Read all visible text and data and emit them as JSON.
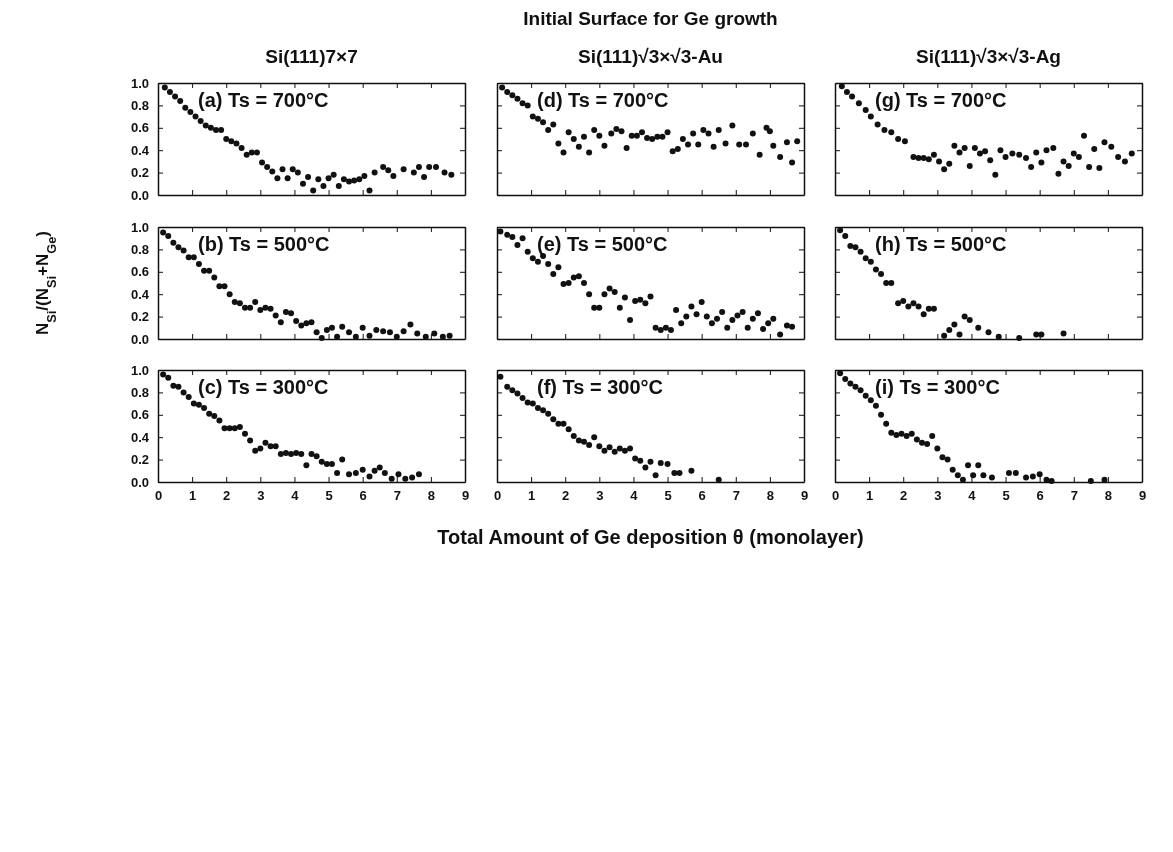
{
  "chart_data": [
    {
      "type": "scatter",
      "subtitle": "Si(111)7×7",
      "annotations": [
        "(a) Ts = 700°C"
      ],
      "marker": "circle",
      "color": "#111111",
      "xlim": [
        0,
        9
      ],
      "ylim": [
        0,
        1
      ],
      "xticks": [
        0,
        1,
        2,
        3,
        4,
        5,
        6,
        7,
        8,
        9
      ],
      "yticks": [
        {
          "value": 0,
          "label": "0.0"
        },
        {
          "value": 0.2,
          "label": "0.2"
        },
        {
          "value": 0.4,
          "label": "0.4"
        },
        {
          "value": 0.6,
          "label": "0.6"
        },
        {
          "value": 0.8,
          "label": "0.8"
        },
        {
          "value": 1,
          "label": "1.0"
        }
      ],
      "tick_labels": "y",
      "x": [
        0.2,
        0.35,
        0.5,
        0.65,
        0.8,
        0.95,
        1.1,
        1.25,
        1.4,
        1.55,
        1.7,
        1.85,
        2.0,
        2.15,
        2.3,
        2.45,
        2.6,
        2.75,
        2.9,
        3.05,
        3.2,
        3.35,
        3.5,
        3.65,
        3.8,
        3.95,
        4.1,
        4.25,
        4.4,
        4.55,
        4.7,
        4.85,
        5.0,
        5.15,
        5.3,
        5.45,
        5.6,
        5.75,
        5.9,
        6.05,
        6.2,
        6.35,
        6.6,
        6.75,
        6.9,
        7.2,
        7.5,
        7.65,
        7.8,
        7.95,
        8.15,
        8.4,
        8.6
      ],
      "values": [
        0.96,
        0.92,
        0.88,
        0.84,
        0.78,
        0.74,
        0.7,
        0.66,
        0.62,
        0.6,
        0.58,
        0.58,
        0.5,
        0.48,
        0.46,
        0.42,
        0.36,
        0.38,
        0.38,
        0.29,
        0.25,
        0.21,
        0.15,
        0.23,
        0.15,
        0.23,
        0.2,
        0.1,
        0.16,
        0.04,
        0.14,
        0.08,
        0.15,
        0.18,
        0.08,
        0.14,
        0.12,
        0.13,
        0.14,
        0.17,
        0.04,
        0.2,
        0.25,
        0.22,
        0.17,
        0.23,
        0.2,
        0.25,
        0.16,
        0.25,
        0.25,
        0.2,
        0.18
      ]
    },
    {
      "type": "scatter",
      "title": "Initial Surface for Ge growth",
      "subtitle": "Si(111)√3×√3-Au",
      "annotations": [
        "(d) Ts = 700°C"
      ],
      "marker": "circle",
      "color": "#111111",
      "xlim": [
        0,
        9
      ],
      "ylim": [
        0,
        1
      ],
      "xticks": [
        0,
        1,
        2,
        3,
        4,
        5,
        6,
        7,
        8,
        9
      ],
      "yticks": [
        0,
        0.2,
        0.4,
        0.6,
        0.8,
        1
      ],
      "tick_labels": false,
      "x": [
        0.15,
        0.3,
        0.45,
        0.6,
        0.75,
        0.9,
        1.05,
        1.2,
        1.35,
        1.5,
        1.65,
        1.8,
        1.95,
        2.1,
        2.25,
        2.4,
        2.55,
        2.7,
        2.85,
        3.0,
        3.15,
        3.35,
        3.5,
        3.65,
        3.8,
        3.95,
        4.1,
        4.25,
        4.4,
        4.55,
        4.7,
        4.85,
        5.0,
        5.15,
        5.3,
        5.45,
        5.6,
        5.75,
        5.9,
        6.05,
        6.2,
        6.35,
        6.5,
        6.7,
        6.9,
        7.1,
        7.3,
        7.5,
        7.7,
        7.9,
        8.0,
        8.1,
        8.3,
        8.5,
        8.65,
        8.8
      ],
      "values": [
        0.96,
        0.92,
        0.89,
        0.86,
        0.82,
        0.8,
        0.7,
        0.68,
        0.65,
        0.58,
        0.63,
        0.46,
        0.38,
        0.56,
        0.5,
        0.43,
        0.52,
        0.38,
        0.58,
        0.53,
        0.44,
        0.55,
        0.59,
        0.57,
        0.42,
        0.53,
        0.53,
        0.56,
        0.51,
        0.5,
        0.52,
        0.52,
        0.56,
        0.39,
        0.41,
        0.5,
        0.45,
        0.55,
        0.45,
        0.58,
        0.55,
        0.43,
        0.58,
        0.46,
        0.62,
        0.45,
        0.45,
        0.55,
        0.36,
        0.6,
        0.57,
        0.44,
        0.34,
        0.47,
        0.29,
        0.48
      ]
    },
    {
      "type": "scatter",
      "subtitle": "Si(111)√3×√3-Ag",
      "annotations": [
        "(g) Ts = 700°C"
      ],
      "marker": "circle",
      "color": "#111111",
      "xlim": [
        0,
        9
      ],
      "ylim": [
        0,
        1
      ],
      "xticks": [
        0,
        1,
        2,
        3,
        4,
        5,
        6,
        7,
        8,
        9
      ],
      "yticks": [
        0,
        0.2,
        0.4,
        0.6,
        0.8,
        1
      ],
      "tick_labels": false,
      "x": [
        0.2,
        0.35,
        0.5,
        0.7,
        0.9,
        1.05,
        1.25,
        1.45,
        1.65,
        1.85,
        2.05,
        2.3,
        2.45,
        2.6,
        2.75,
        2.9,
        3.05,
        3.2,
        3.35,
        3.5,
        3.65,
        3.8,
        3.95,
        4.1,
        4.25,
        4.4,
        4.55,
        4.7,
        4.85,
        5.0,
        5.2,
        5.4,
        5.6,
        5.75,
        5.9,
        6.05,
        6.2,
        6.4,
        6.55,
        6.7,
        6.85,
        7.0,
        7.15,
        7.3,
        7.45,
        7.6,
        7.75,
        7.9,
        8.1,
        8.3,
        8.5,
        8.7
      ],
      "values": [
        0.97,
        0.92,
        0.88,
        0.82,
        0.76,
        0.7,
        0.63,
        0.58,
        0.56,
        0.5,
        0.48,
        0.34,
        0.33,
        0.33,
        0.32,
        0.36,
        0.3,
        0.23,
        0.28,
        0.44,
        0.38,
        0.42,
        0.26,
        0.42,
        0.37,
        0.39,
        0.31,
        0.18,
        0.4,
        0.34,
        0.37,
        0.36,
        0.33,
        0.25,
        0.38,
        0.29,
        0.4,
        0.42,
        0.19,
        0.3,
        0.26,
        0.37,
        0.34,
        0.53,
        0.25,
        0.41,
        0.24,
        0.47,
        0.43,
        0.34,
        0.3,
        0.37
      ]
    },
    {
      "type": "scatter",
      "ylabel": "N$_{Si}$/(N$_{Si}$+N$_{Ge}$)",
      "annotations": [
        "(b) Ts = 500°C"
      ],
      "marker": "circle",
      "color": "#111111",
      "xlim": [
        0,
        9
      ],
      "ylim": [
        0,
        1
      ],
      "xticks": [
        0,
        1,
        2,
        3,
        4,
        5,
        6,
        7,
        8,
        9
      ],
      "yticks": [
        {
          "value": 0,
          "label": "0.0"
        },
        {
          "value": 0.2,
          "label": "0.2"
        },
        {
          "value": 0.4,
          "label": "0.4"
        },
        {
          "value": 0.6,
          "label": "0.6"
        },
        {
          "value": 0.8,
          "label": "0.8"
        },
        {
          "value": 1,
          "label": "1.0"
        }
      ],
      "tick_labels": "y",
      "x": [
        0.15,
        0.3,
        0.45,
        0.6,
        0.75,
        0.9,
        1.05,
        1.2,
        1.35,
        1.5,
        1.65,
        1.8,
        1.95,
        2.1,
        2.25,
        2.4,
        2.55,
        2.7,
        2.85,
        3.0,
        3.15,
        3.3,
        3.45,
        3.6,
        3.75,
        3.9,
        4.05,
        4.2,
        4.35,
        4.5,
        4.65,
        4.8,
        4.95,
        5.1,
        5.25,
        5.4,
        5.6,
        5.8,
        6.0,
        6.2,
        6.4,
        6.6,
        6.8,
        7.0,
        7.2,
        7.4,
        7.6,
        7.85,
        8.1,
        8.35,
        8.55
      ],
      "values": [
        0.95,
        0.92,
        0.86,
        0.82,
        0.79,
        0.73,
        0.73,
        0.67,
        0.61,
        0.61,
        0.55,
        0.47,
        0.47,
        0.4,
        0.33,
        0.32,
        0.28,
        0.28,
        0.33,
        0.26,
        0.28,
        0.27,
        0.21,
        0.15,
        0.24,
        0.23,
        0.16,
        0.12,
        0.14,
        0.15,
        0.06,
        0.01,
        0.08,
        0.1,
        0.02,
        0.11,
        0.06,
        0.02,
        0.1,
        0.03,
        0.08,
        0.07,
        0.06,
        0.02,
        0.07,
        0.13,
        0.05,
        0.02,
        0.05,
        0.02,
        0.03
      ]
    },
    {
      "type": "scatter",
      "annotations": [
        "(e) Ts = 500°C"
      ],
      "marker": "circle",
      "color": "#111111",
      "xlim": [
        0,
        9
      ],
      "ylim": [
        0,
        1
      ],
      "xticks": [
        0,
        1,
        2,
        3,
        4,
        5,
        6,
        7,
        8,
        9
      ],
      "yticks": [
        0,
        0.2,
        0.4,
        0.6,
        0.8,
        1
      ],
      "tick_labels": false,
      "x": [
        0.1,
        0.3,
        0.45,
        0.6,
        0.75,
        0.9,
        1.05,
        1.2,
        1.35,
        1.5,
        1.65,
        1.8,
        1.95,
        2.1,
        2.25,
        2.4,
        2.55,
        2.7,
        2.85,
        3.0,
        3.15,
        3.3,
        3.45,
        3.6,
        3.75,
        3.9,
        4.05,
        4.2,
        4.35,
        4.5,
        4.65,
        4.8,
        4.95,
        5.1,
        5.25,
        5.4,
        5.55,
        5.7,
        5.85,
        6.0,
        6.15,
        6.3,
        6.45,
        6.6,
        6.75,
        6.9,
        7.05,
        7.2,
        7.35,
        7.5,
        7.65,
        7.8,
        7.95,
        8.1,
        8.3,
        8.5,
        8.65
      ],
      "values": [
        0.96,
        0.93,
        0.91,
        0.84,
        0.9,
        0.78,
        0.72,
        0.69,
        0.74,
        0.67,
        0.58,
        0.64,
        0.49,
        0.5,
        0.55,
        0.56,
        0.5,
        0.4,
        0.28,
        0.28,
        0.4,
        0.45,
        0.42,
        0.28,
        0.37,
        0.17,
        0.34,
        0.35,
        0.32,
        0.38,
        0.1,
        0.08,
        0.1,
        0.08,
        0.26,
        0.14,
        0.2,
        0.29,
        0.22,
        0.33,
        0.2,
        0.14,
        0.18,
        0.24,
        0.1,
        0.17,
        0.21,
        0.24,
        0.1,
        0.18,
        0.23,
        0.09,
        0.14,
        0.18,
        0.04,
        0.12,
        0.11
      ]
    },
    {
      "type": "scatter",
      "annotations": [
        "(h) Ts = 500°C"
      ],
      "marker": "circle",
      "color": "#111111",
      "xlim": [
        0,
        9
      ],
      "ylim": [
        0,
        1
      ],
      "xticks": [
        0,
        1,
        2,
        3,
        4,
        5,
        6,
        7,
        8,
        9
      ],
      "yticks": [
        0,
        0.2,
        0.4,
        0.6,
        0.8,
        1
      ],
      "tick_labels": false,
      "x": [
        0.15,
        0.3,
        0.45,
        0.6,
        0.75,
        0.9,
        1.05,
        1.2,
        1.35,
        1.5,
        1.65,
        1.85,
        2.0,
        2.15,
        2.3,
        2.45,
        2.6,
        2.75,
        2.9,
        3.2,
        3.35,
        3.5,
        3.65,
        3.8,
        3.95,
        4.2,
        4.5,
        4.8,
        5.4,
        5.9,
        6.05,
        6.7
      ],
      "values": [
        0.97,
        0.92,
        0.83,
        0.82,
        0.78,
        0.72,
        0.69,
        0.62,
        0.58,
        0.5,
        0.5,
        0.32,
        0.34,
        0.29,
        0.32,
        0.29,
        0.22,
        0.27,
        0.27,
        0.03,
        0.08,
        0.13,
        0.04,
        0.2,
        0.17,
        0.1,
        0.06,
        0.02,
        0.01,
        0.04,
        0.04,
        0.05
      ]
    },
    {
      "type": "scatter",
      "annotations": [
        "(c) Ts = 300°C"
      ],
      "marker": "circle",
      "color": "#111111",
      "xlim": [
        0,
        9
      ],
      "ylim": [
        0,
        1
      ],
      "xticks": [
        0,
        1,
        2,
        3,
        4,
        5,
        6,
        7,
        8,
        9
      ],
      "yticks": [
        {
          "value": 0,
          "label": "0.0"
        },
        {
          "value": 0.2,
          "label": "0.2"
        },
        {
          "value": 0.4,
          "label": "0.4"
        },
        {
          "value": 0.6,
          "label": "0.6"
        },
        {
          "value": 0.8,
          "label": "0.8"
        },
        {
          "value": 1,
          "label": "1.0"
        }
      ],
      "x": [
        0.15,
        0.3,
        0.45,
        0.6,
        0.75,
        0.9,
        1.05,
        1.2,
        1.35,
        1.5,
        1.65,
        1.8,
        1.95,
        2.1,
        2.25,
        2.4,
        2.55,
        2.7,
        2.85,
        3.0,
        3.15,
        3.3,
        3.45,
        3.6,
        3.75,
        3.9,
        4.05,
        4.2,
        4.35,
        4.5,
        4.65,
        4.8,
        4.95,
        5.1,
        5.25,
        5.4,
        5.6,
        5.8,
        6.0,
        6.2,
        6.35,
        6.5,
        6.65,
        6.85,
        7.05,
        7.25,
        7.45,
        7.65
      ],
      "values": [
        0.96,
        0.93,
        0.86,
        0.85,
        0.8,
        0.76,
        0.7,
        0.69,
        0.66,
        0.61,
        0.59,
        0.55,
        0.48,
        0.48,
        0.48,
        0.49,
        0.43,
        0.37,
        0.28,
        0.3,
        0.35,
        0.32,
        0.32,
        0.25,
        0.26,
        0.25,
        0.26,
        0.25,
        0.15,
        0.25,
        0.23,
        0.18,
        0.16,
        0.16,
        0.08,
        0.2,
        0.07,
        0.08,
        0.11,
        0.05,
        0.1,
        0.13,
        0.08,
        0.03,
        0.07,
        0.03,
        0.04,
        0.07
      ]
    },
    {
      "type": "scatter",
      "xlabel": "Total Amount of Ge deposition θ (monolayer)",
      "annotations": [
        "(f) Ts = 300°C"
      ],
      "marker": "circle",
      "color": "#111111",
      "xlim": [
        0,
        9
      ],
      "ylim": [
        0,
        1
      ],
      "xticks": [
        0,
        1,
        2,
        3,
        4,
        5,
        6,
        7,
        8,
        9
      ],
      "yticks": [
        0,
        0.2,
        0.4,
        0.6,
        0.8,
        1
      ],
      "tick_labels": "x",
      "x": [
        0.1,
        0.3,
        0.45,
        0.6,
        0.75,
        0.9,
        1.05,
        1.2,
        1.35,
        1.5,
        1.65,
        1.8,
        1.95,
        2.1,
        2.25,
        2.4,
        2.55,
        2.7,
        2.85,
        3.0,
        3.15,
        3.3,
        3.45,
        3.6,
        3.75,
        3.9,
        4.05,
        4.2,
        4.35,
        4.5,
        4.65,
        4.8,
        5.0,
        5.2,
        5.35,
        5.7,
        6.5
      ],
      "values": [
        0.94,
        0.85,
        0.82,
        0.79,
        0.75,
        0.71,
        0.7,
        0.66,
        0.64,
        0.61,
        0.56,
        0.52,
        0.52,
        0.47,
        0.41,
        0.37,
        0.36,
        0.33,
        0.4,
        0.32,
        0.28,
        0.31,
        0.27,
        0.3,
        0.28,
        0.3,
        0.21,
        0.19,
        0.13,
        0.18,
        0.06,
        0.17,
        0.16,
        0.08,
        0.08,
        0.1,
        0.02
      ]
    },
    {
      "type": "scatter",
      "annotations": [
        "(i) Ts = 300°C"
      ],
      "marker": "circle",
      "color": "#111111",
      "xlim": [
        0,
        9
      ],
      "ylim": [
        0,
        1
      ],
      "xticks": [
        0,
        1,
        2,
        3,
        4,
        5,
        6,
        7,
        8,
        9
      ],
      "yticks": [
        0,
        0.2,
        0.4,
        0.6,
        0.8,
        1
      ],
      "tick_labels": "x",
      "x": [
        0.15,
        0.3,
        0.45,
        0.6,
        0.75,
        0.9,
        1.05,
        1.2,
        1.35,
        1.5,
        1.65,
        1.8,
        1.95,
        2.1,
        2.25,
        2.4,
        2.55,
        2.7,
        2.85,
        3.0,
        3.15,
        3.3,
        3.45,
        3.6,
        3.75,
        3.9,
        4.05,
        4.2,
        4.35,
        4.6,
        5.1,
        5.3,
        5.6,
        5.8,
        6.0,
        6.2,
        6.35,
        7.5,
        7.9
      ],
      "values": [
        0.97,
        0.92,
        0.88,
        0.85,
        0.82,
        0.77,
        0.73,
        0.68,
        0.6,
        0.52,
        0.44,
        0.42,
        0.43,
        0.41,
        0.43,
        0.38,
        0.35,
        0.34,
        0.41,
        0.3,
        0.22,
        0.2,
        0.11,
        0.06,
        0.02,
        0.15,
        0.06,
        0.15,
        0.06,
        0.04,
        0.08,
        0.08,
        0.04,
        0.05,
        0.07,
        0.02,
        0.01,
        0.01,
        0.02
      ]
    }
  ]
}
